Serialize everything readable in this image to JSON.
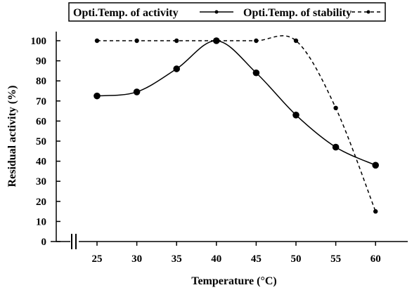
{
  "chart_data": {
    "type": "line",
    "title": "",
    "xlabel": "Temperature (°C)",
    "ylabel": "Residual activity (%)",
    "categories": [
      25,
      30,
      35,
      40,
      45,
      50,
      55,
      60
    ],
    "x_tick_labels": [
      "25",
      "30",
      "35",
      "40",
      "45",
      "50",
      "55",
      "60"
    ],
    "y_tick_labels": [
      "0",
      "10",
      "20",
      "30",
      "40",
      "50",
      "60",
      "70",
      "80",
      "90",
      "100"
    ],
    "ylim": [
      0,
      100
    ],
    "yticks": [
      0,
      10,
      20,
      30,
      40,
      50,
      60,
      70,
      80,
      90,
      100
    ],
    "grid": false,
    "axis_break_on_x": true,
    "legend_position": "top",
    "series": [
      {
        "name": "Opti.Temp. of activity",
        "line_style": "solid",
        "values": [
          72.5,
          74.5,
          86,
          100,
          84,
          63,
          47,
          38
        ]
      },
      {
        "name": "Opti.Temp. of stability",
        "line_style": "dashed",
        "values": [
          100,
          100,
          100,
          100,
          100,
          100,
          66.5,
          15
        ]
      }
    ]
  }
}
